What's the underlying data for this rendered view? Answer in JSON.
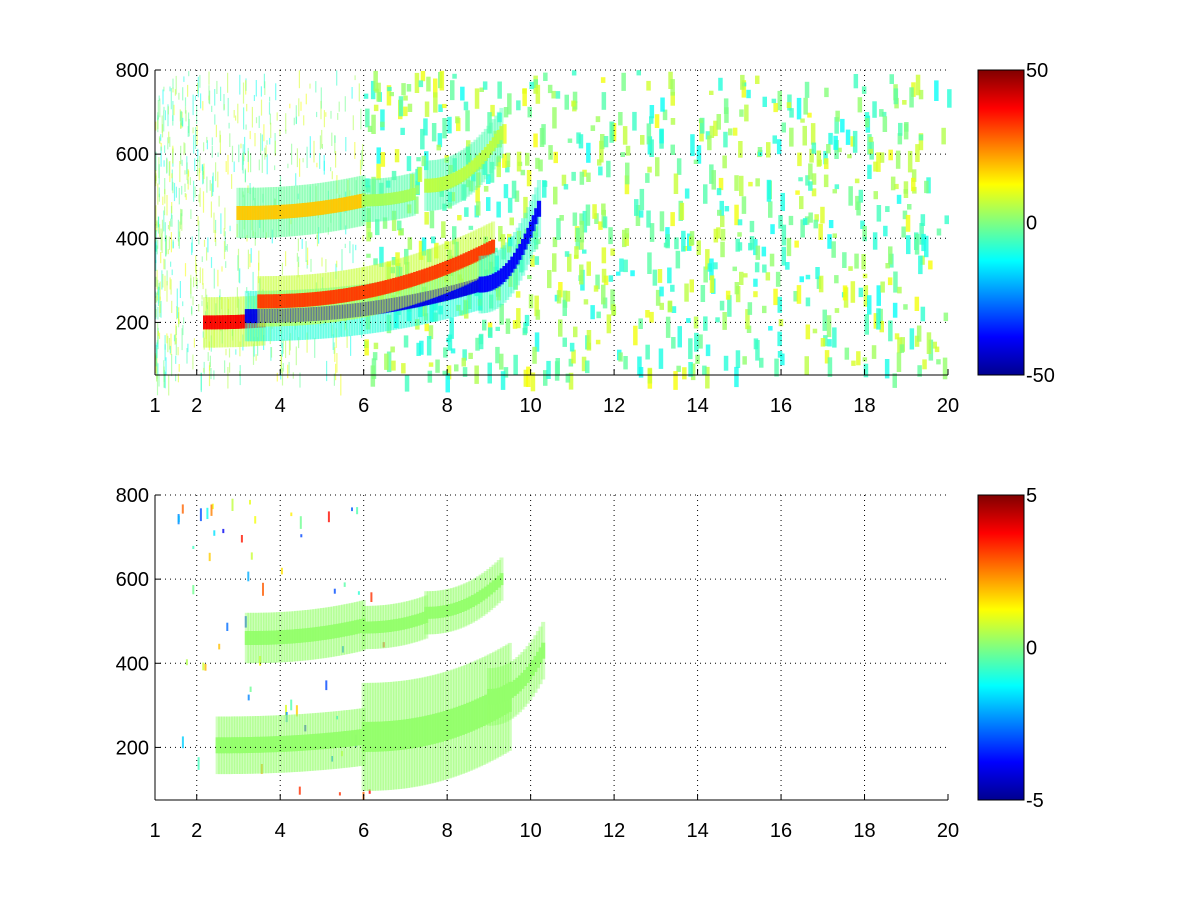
{
  "chart_data": [
    {
      "type": "heatmap",
      "title": "",
      "xlabel": "",
      "ylabel": "",
      "xlim": [
        1,
        20
      ],
      "ylim": [
        75,
        800
      ],
      "xticks": [
        1,
        2,
        4,
        6,
        8,
        10,
        12,
        14,
        16,
        18,
        20
      ],
      "yticks": [
        200,
        400,
        600,
        800
      ],
      "grid": true,
      "colormap": "jet",
      "colorbar": {
        "min": -50,
        "max": 50,
        "ticks": [
          -50,
          0,
          50
        ]
      },
      "features": [
        {
          "kind": "band",
          "x_start": 3.0,
          "x_end": 6.0,
          "y_start": 460,
          "y_end": 490,
          "value": 18,
          "alt_value": -8,
          "thickness": 14
        },
        {
          "kind": "band",
          "x_start": 6.0,
          "x_end": 7.2,
          "y_start": 490,
          "y_end": 505,
          "value": 4,
          "alt_value": -12,
          "thickness": 12
        },
        {
          "kind": "band",
          "x_start": 7.5,
          "x_end": 9.3,
          "y_start": 525,
          "y_end": 650,
          "value": 6,
          "alt_value": -14,
          "thickness": 14
        },
        {
          "kind": "band",
          "x_start": 2.2,
          "x_end": 3.6,
          "y_start": 200,
          "y_end": 205,
          "value": 38,
          "alt_value": 20,
          "thickness": 14
        },
        {
          "kind": "band",
          "x_start": 3.2,
          "x_end": 8.8,
          "y_start": 215,
          "y_end": 290,
          "value": -40,
          "alt_value": -25,
          "thickness": 14
        },
        {
          "kind": "band",
          "x_start": 3.5,
          "x_end": 9.1,
          "y_start": 250,
          "y_end": 380,
          "value": 32,
          "alt_value": 20,
          "thickness": 14
        },
        {
          "kind": "band",
          "x_start": 8.8,
          "x_end": 10.2,
          "y_start": 290,
          "y_end": 470,
          "value": -38,
          "alt_value": -20,
          "thickness": 16
        }
      ]
    },
    {
      "type": "heatmap",
      "title": "",
      "xlabel": "",
      "ylabel": "",
      "xlim": [
        1,
        20
      ],
      "ylim": [
        75,
        800
      ],
      "xticks": [
        1,
        2,
        4,
        6,
        8,
        10,
        12,
        14,
        16,
        18,
        20
      ],
      "yticks": [
        200,
        400,
        600,
        800
      ],
      "grid": true,
      "colormap": "jet",
      "colorbar": {
        "min": -5,
        "max": 5,
        "ticks": [
          -5,
          0,
          5
        ]
      },
      "features": [
        {
          "kind": "band",
          "x_start": 3.2,
          "x_end": 6.0,
          "y_start": 460,
          "y_end": 490,
          "value": 0.2,
          "thickness": 14
        },
        {
          "kind": "band",
          "x_start": 6.0,
          "x_end": 7.5,
          "y_start": 485,
          "y_end": 510,
          "value": 0.2,
          "thickness": 12
        },
        {
          "kind": "band",
          "x_start": 7.5,
          "x_end": 9.3,
          "y_start": 520,
          "y_end": 600,
          "value": 0.2,
          "thickness": 12
        },
        {
          "kind": "band",
          "x_start": 2.5,
          "x_end": 6.0,
          "y_start": 205,
          "y_end": 225,
          "value": 0.2,
          "thickness": 16
        },
        {
          "kind": "band",
          "x_start": 6.0,
          "x_end": 9.5,
          "y_start": 225,
          "y_end": 320,
          "value": 0.2,
          "thickness": 30
        },
        {
          "kind": "band",
          "x_start": 9.0,
          "x_end": 10.3,
          "y_start": 320,
          "y_end": 430,
          "value": 0.2,
          "thickness": 16
        }
      ]
    }
  ]
}
